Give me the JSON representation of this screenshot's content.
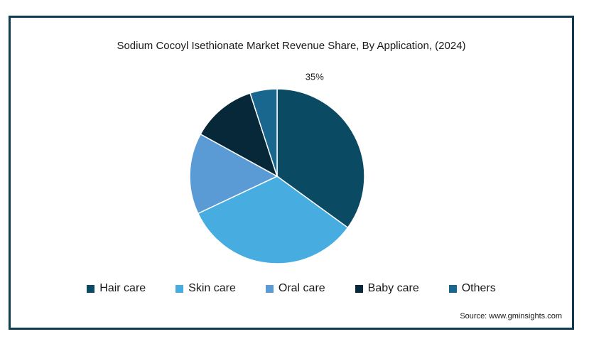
{
  "chart_data": {
    "type": "pie",
    "title": "Sodium Cocoyl Isethionate Market Revenue Share, By Application, (2024)",
    "categories": [
      "Hair care",
      "Skin care",
      "Oral care",
      "Baby care",
      "Others"
    ],
    "values": [
      35,
      33,
      15,
      12,
      5
    ],
    "colors": [
      "#0b4a63",
      "#47ade0",
      "#5b9bd5",
      "#072838",
      "#19668f"
    ],
    "data_labels": [
      "35%",
      "",
      "",
      "",
      ""
    ],
    "legend_position": "bottom"
  },
  "source": "Source: www.gminsights.com"
}
